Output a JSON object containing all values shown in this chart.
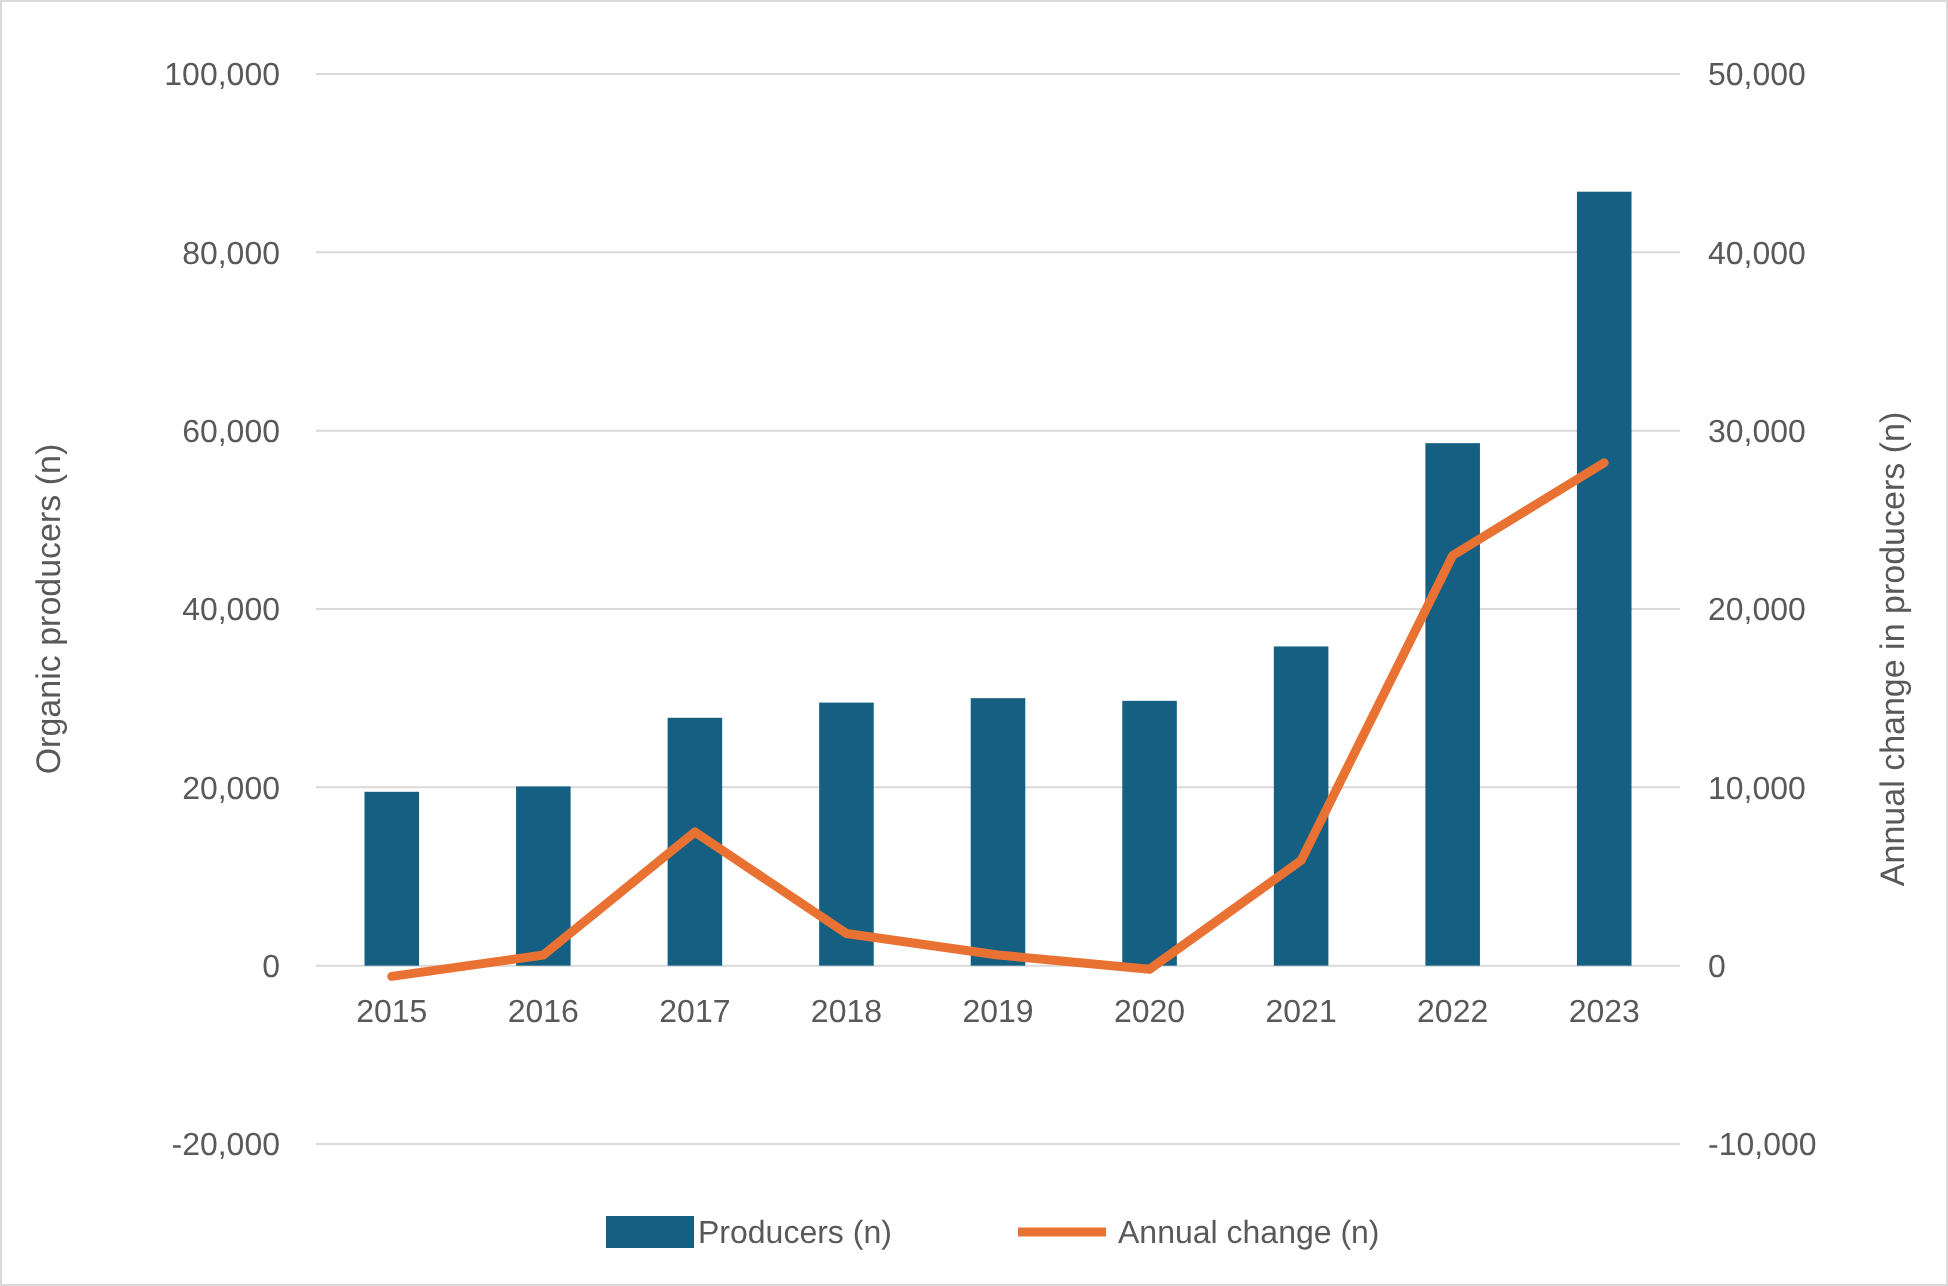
{
  "chart_data": {
    "type": "bar",
    "categories": [
      "2015",
      "2016",
      "2017",
      "2018",
      "2019",
      "2020",
      "2021",
      "2022",
      "2023"
    ],
    "ylabel": "Organic producers (n)",
    "y2label": "Annual change in producers (n)",
    "ylim": [
      -20000,
      100000
    ],
    "yticks": [
      {
        "value": -20000,
        "label": "-20,000"
      },
      0,
      {
        "value": 20000,
        "label": "20,000"
      },
      {
        "value": 40000,
        "label": "40,000"
      },
      {
        "value": 60000,
        "label": "60,000"
      },
      {
        "value": 80000,
        "label": "80,000"
      },
      {
        "value": 100000,
        "label": "100,000"
      }
    ],
    "y2lim": [
      -10000,
      50000
    ],
    "y2ticks": [
      {
        "value": -10000,
        "label": "-10,000"
      },
      0,
      {
        "value": 10000,
        "label": "10,000"
      },
      {
        "value": 20000,
        "label": "20,000"
      },
      {
        "value": 30000,
        "label": "30,000"
      },
      {
        "value": 40000,
        "label": "40,000"
      },
      {
        "value": 50000,
        "label": "50,000"
      }
    ],
    "grid": "y",
    "legend": "bottom",
    "series": [
      {
        "name": "Producers (n)",
        "color": "#156082",
        "values": [
          19500,
          20100,
          27800,
          29500,
          30000,
          29700,
          35800,
          58600,
          86800
        ]
      },
      {
        "name": "Annual change (n)",
        "type": "line",
        "axis": "y2",
        "color": "#e97132",
        "values": [
          -600,
          600,
          7500,
          1800,
          600,
          -200,
          5900,
          23000,
          28200
        ]
      }
    ]
  }
}
